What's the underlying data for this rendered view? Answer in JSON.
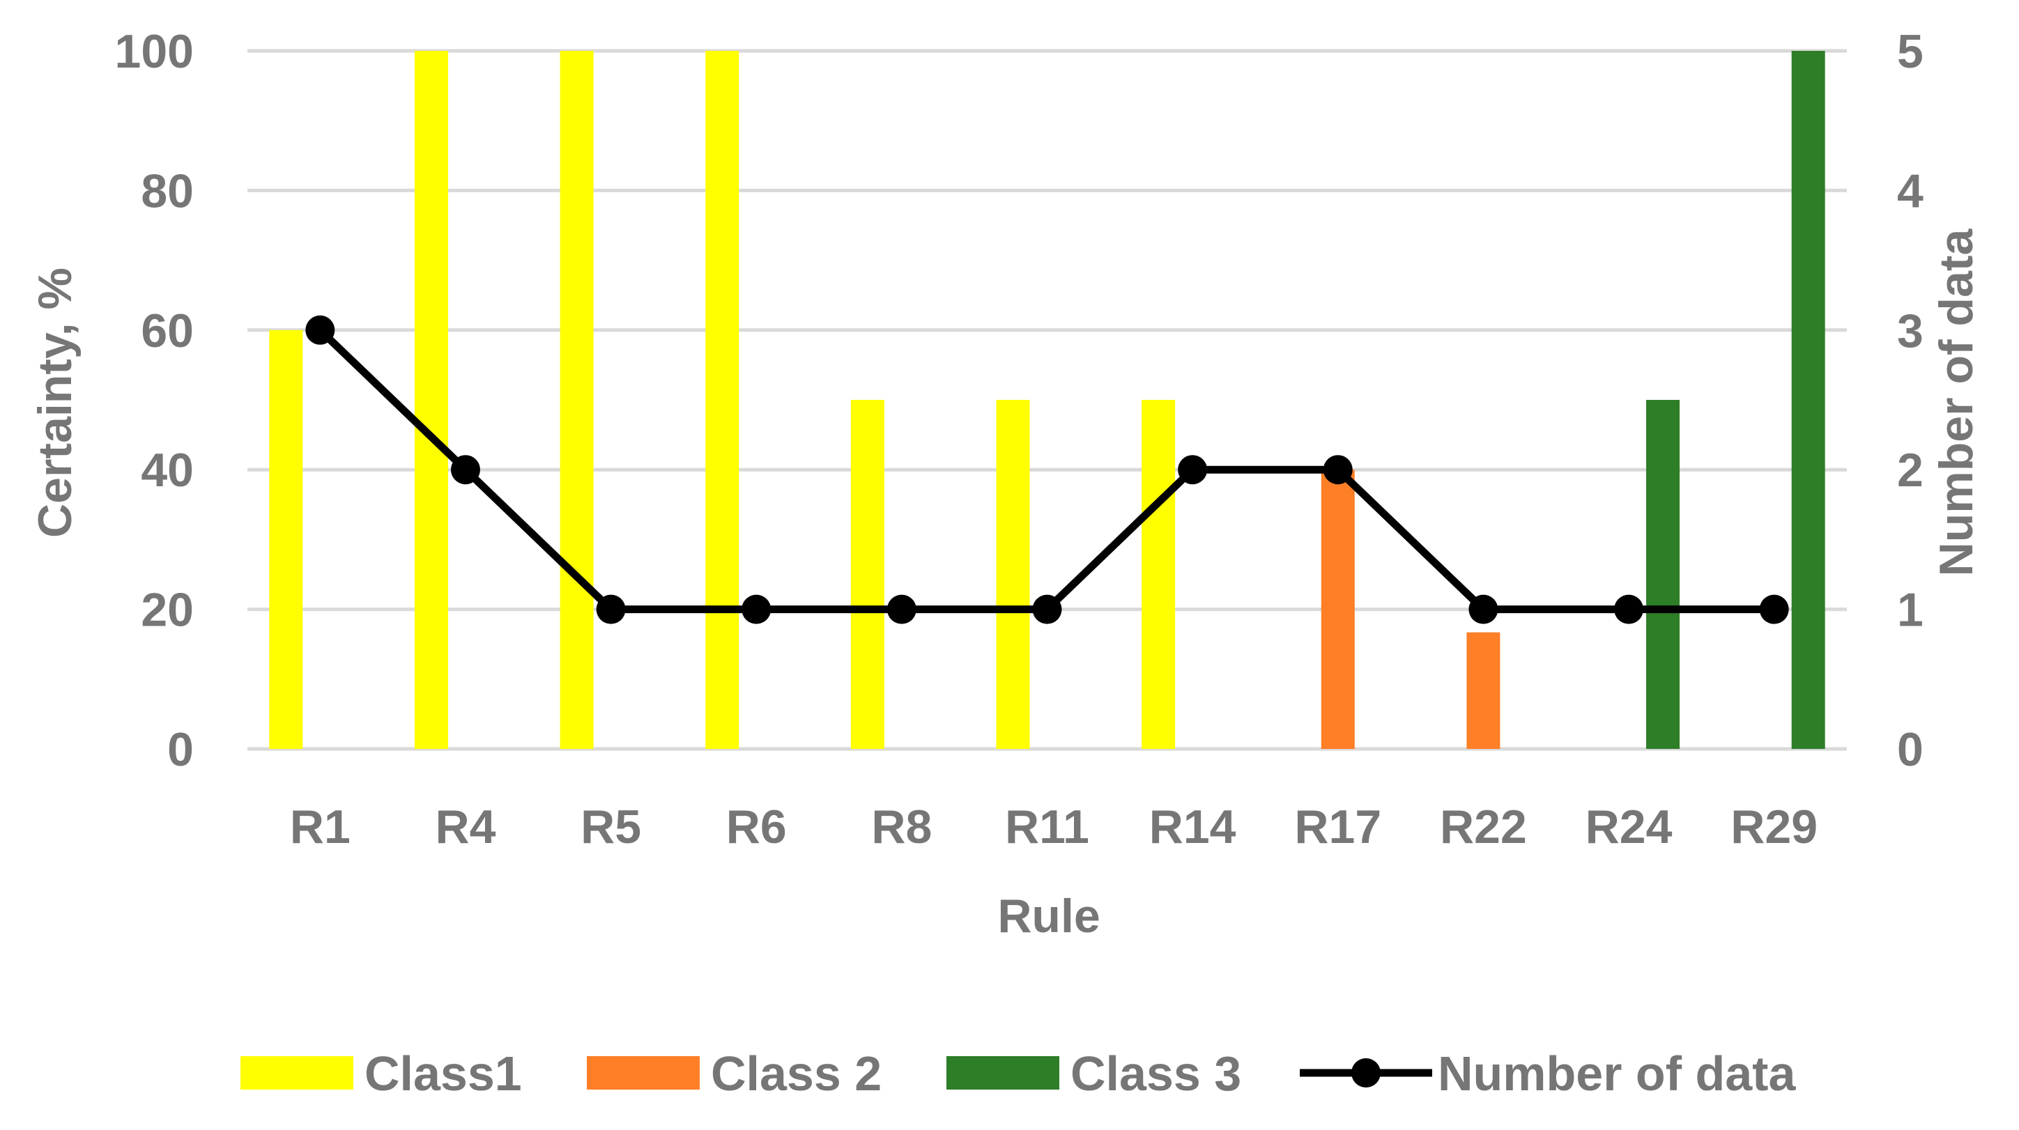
{
  "chart_data": {
    "type": "bar",
    "categories": [
      "R1",
      "R4",
      "R5",
      "R6",
      "R8",
      "R11",
      "R14",
      "R17",
      "R22",
      "R24",
      "R29"
    ],
    "xlabel": "Rule",
    "ylabel": "Certainty, %",
    "y2label": "Number of data",
    "ylim": [
      0,
      100
    ],
    "y2lim": [
      0,
      5
    ],
    "yticks": [
      0,
      20,
      40,
      60,
      80,
      100
    ],
    "y2ticks": [
      0,
      1,
      2,
      3,
      4,
      5
    ],
    "grid": true,
    "legend_position": "bottom",
    "series": [
      {
        "name": "Class1",
        "kind": "bar",
        "axis": "left",
        "color": "#ffff00",
        "values": [
          60,
          100,
          100,
          100,
          50,
          50,
          50,
          null,
          null,
          null,
          null
        ]
      },
      {
        "name": "Class 2",
        "kind": "bar",
        "axis": "left",
        "color": "#ff7f27",
        "values": [
          null,
          null,
          null,
          null,
          null,
          null,
          null,
          40,
          16.7,
          null,
          null
        ]
      },
      {
        "name": "Class 3",
        "kind": "bar",
        "axis": "left",
        "color": "#2e7d27",
        "values": [
          null,
          null,
          null,
          null,
          null,
          null,
          null,
          null,
          null,
          50,
          100
        ]
      },
      {
        "name": "Number of data",
        "kind": "line",
        "axis": "right",
        "color": "#000000",
        "values": [
          3,
          2,
          1,
          1,
          1,
          1,
          2,
          2,
          1,
          1,
          1
        ]
      }
    ]
  }
}
